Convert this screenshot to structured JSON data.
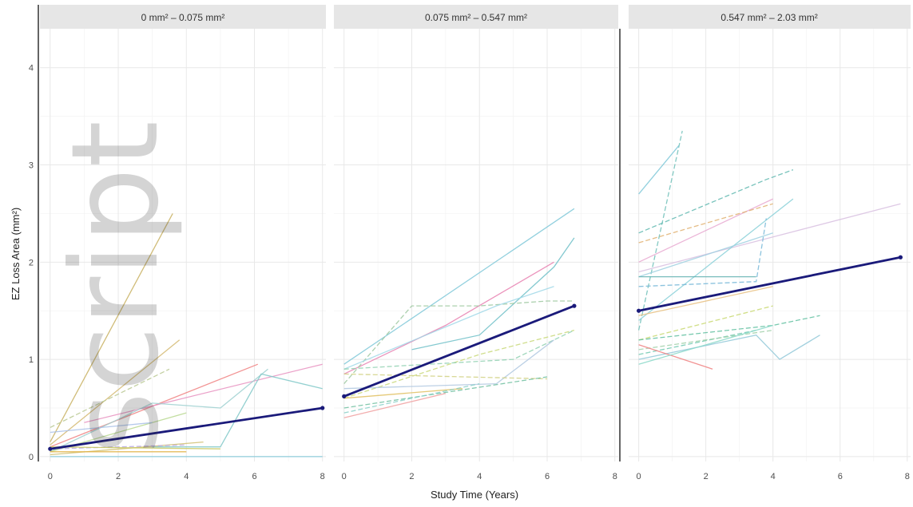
{
  "chart_data": {
    "type": "line",
    "xlabel": "Study Time (Years)",
    "ylabel": "EZ Loss Area (mm²)",
    "ylim": [
      -0.05,
      4.4
    ],
    "yticks": [
      0,
      1,
      2,
      3,
      4
    ],
    "ytick_labels": [
      "0",
      "1",
      "2",
      "3",
      "4"
    ],
    "grid": true,
    "legend": "none",
    "trend_color": "#1a1a7a",
    "panels": [
      {
        "strip": "0 mm² – 0.075 mm²",
        "xlim": [
          -0.3,
          8.1
        ],
        "xticks": [
          0,
          2,
          4,
          6,
          8
        ],
        "xtick_labels": [
          "0",
          "2",
          "4",
          "6",
          "8"
        ],
        "trend": {
          "x": [
            0,
            8
          ],
          "y": [
            0.08,
            0.5
          ]
        },
        "subjects": [
          {
            "color": "#c8b060",
            "dash": false,
            "x": [
              0,
              3.6
            ],
            "y": [
              0.15,
              2.5
            ]
          },
          {
            "color": "#d4b870",
            "dash": false,
            "x": [
              0,
              3.8
            ],
            "y": [
              0.12,
              1.2
            ]
          },
          {
            "color": "#b8c890",
            "dash": true,
            "x": [
              0,
              3.5
            ],
            "y": [
              0.3,
              0.9
            ]
          },
          {
            "color": "#f08080",
            "dash": false,
            "x": [
              0,
              6.1
            ],
            "y": [
              0.1,
              0.95
            ]
          },
          {
            "color": "#e890c0",
            "dash": false,
            "x": [
              1,
              8
            ],
            "y": [
              0.35,
              0.95
            ]
          },
          {
            "color": "#9ed0d0",
            "dash": false,
            "x": [
              0,
              3,
              5,
              6.4
            ],
            "y": [
              0.05,
              0.55,
              0.5,
              0.9
            ]
          },
          {
            "color": "#80c8c8",
            "dash": false,
            "x": [
              3,
              5,
              6.2,
              8
            ],
            "y": [
              0.1,
              0.1,
              0.85,
              0.7
            ]
          },
          {
            "color": "#b8d890",
            "dash": false,
            "x": [
              0,
              4
            ],
            "y": [
              0.05,
              0.45
            ]
          },
          {
            "color": "#d0c070",
            "dash": false,
            "x": [
              0,
              4.5
            ],
            "y": [
              0.02,
              0.15
            ]
          },
          {
            "color": "#b8a8e0",
            "dash": true,
            "x": [
              0,
              4
            ],
            "y": [
              0.08,
              0.12
            ]
          },
          {
            "color": "#c8c860",
            "dash": false,
            "x": [
              0,
              5
            ],
            "y": [
              0.1,
              0.08
            ]
          },
          {
            "color": "#e0b040",
            "dash": false,
            "x": [
              0,
              4
            ],
            "y": [
              0.05,
              0.05
            ]
          },
          {
            "color": "#7fc8d8",
            "dash": false,
            "x": [
              0,
              8
            ],
            "y": [
              0,
              0
            ]
          },
          {
            "color": "#a8c0e8",
            "dash": false,
            "x": [
              0,
              3
            ],
            "y": [
              0.25,
              0.35
            ]
          }
        ]
      },
      {
        "strip": "0.075 mm² – 0.547 mm²",
        "xlim": [
          -0.3,
          8.1
        ],
        "xticks": [
          0,
          2,
          4,
          6,
          8
        ],
        "xtick_labels": [
          "0",
          "2",
          "4",
          "6",
          "8"
        ],
        "trend": {
          "x": [
            0,
            6.8
          ],
          "y": [
            0.62,
            1.55
          ]
        },
        "subjects": [
          {
            "color": "#7fc8d8",
            "dash": false,
            "x": [
              0,
              6.8
            ],
            "y": [
              0.95,
              2.55
            ]
          },
          {
            "color": "#6fc0c8",
            "dash": false,
            "x": [
              2,
              4,
              6.2,
              6.8
            ],
            "y": [
              1.1,
              1.25,
              1.95,
              2.25
            ]
          },
          {
            "color": "#e880b0",
            "dash": false,
            "x": [
              0,
              3,
              6.2
            ],
            "y": [
              0.85,
              1.35,
              2.0
            ]
          },
          {
            "color": "#9ec8a0",
            "dash": true,
            "x": [
              0,
              2,
              4,
              6,
              6.8
            ],
            "y": [
              0.75,
              1.55,
              1.55,
              1.6,
              1.6
            ]
          },
          {
            "color": "#a0d8e8",
            "dash": false,
            "x": [
              0,
              4.5,
              6.2
            ],
            "y": [
              0.9,
              1.55,
              1.75
            ]
          },
          {
            "color": "#c8d878",
            "dash": true,
            "x": [
              0,
              4,
              6.8
            ],
            "y": [
              0.6,
              1.05,
              1.3
            ]
          },
          {
            "color": "#8fd0b0",
            "dash": true,
            "x": [
              0,
              5,
              6.8
            ],
            "y": [
              0.9,
              1.0,
              1.3
            ]
          },
          {
            "color": "#b0c8e0",
            "dash": false,
            "x": [
              0,
              4.5,
              6.2
            ],
            "y": [
              0.7,
              0.75,
              1.2
            ]
          },
          {
            "color": "#d0d080",
            "dash": true,
            "x": [
              0,
              6
            ],
            "y": [
              0.85,
              0.8
            ]
          },
          {
            "color": "#70c0a0",
            "dash": true,
            "x": [
              0,
              6
            ],
            "y": [
              0.5,
              0.82
            ]
          },
          {
            "color": "#e0c060",
            "dash": false,
            "x": [
              0,
              3.5
            ],
            "y": [
              0.6,
              0.7
            ]
          },
          {
            "color": "#88d0c8",
            "dash": true,
            "x": [
              0,
              4
            ],
            "y": [
              0.45,
              0.75
            ]
          },
          {
            "color": "#f0a0a0",
            "dash": false,
            "x": [
              0,
              3
            ],
            "y": [
              0.4,
              0.65
            ]
          }
        ]
      },
      {
        "strip": "0.547 mm² – 2.03 mm²",
        "xlim": [
          -0.3,
          8.1
        ],
        "xticks": [
          0,
          2,
          4,
          6,
          8
        ],
        "xtick_labels": [
          "0",
          "2",
          "4",
          "6",
          "8"
        ],
        "trend": {
          "x": [
            0,
            7.8
          ],
          "y": [
            1.5,
            2.05
          ]
        },
        "subjects": [
          {
            "color": "#6fc0b8",
            "dash": true,
            "x": [
              0,
              1.3
            ],
            "y": [
              1.3,
              3.35
            ]
          },
          {
            "color": "#7fc8d8",
            "dash": false,
            "x": [
              0,
              1.2
            ],
            "y": [
              2.7,
              3.2
            ]
          },
          {
            "color": "#60b8b0",
            "dash": true,
            "x": [
              0,
              3.8,
              4.6
            ],
            "y": [
              2.3,
              2.85,
              2.95
            ]
          },
          {
            "color": "#e8a8d0",
            "dash": false,
            "x": [
              0,
              4
            ],
            "y": [
              2.0,
              2.65
            ]
          },
          {
            "color": "#e0b070",
            "dash": true,
            "x": [
              0,
              4
            ],
            "y": [
              2.2,
              2.6
            ]
          },
          {
            "color": "#d8c0e0",
            "dash": false,
            "x": [
              0,
              7.8
            ],
            "y": [
              1.9,
              2.6
            ]
          },
          {
            "color": "#88d0d8",
            "dash": false,
            "x": [
              0,
              4.6
            ],
            "y": [
              1.4,
              2.65
            ]
          },
          {
            "color": "#9fd0e0",
            "dash": false,
            "x": [
              0,
              4
            ],
            "y": [
              1.85,
              2.3
            ]
          },
          {
            "color": "#60b0b0",
            "dash": false,
            "x": [
              0,
              3.5
            ],
            "y": [
              1.85,
              1.85
            ]
          },
          {
            "color": "#78b8d8",
            "dash": true,
            "x": [
              0,
              3.5,
              3.8
            ],
            "y": [
              1.75,
              1.8,
              2.45
            ]
          },
          {
            "color": "#e8c080",
            "dash": false,
            "x": [
              0,
              4
            ],
            "y": [
              1.45,
              1.75
            ]
          },
          {
            "color": "#c8d870",
            "dash": true,
            "x": [
              0,
              4
            ],
            "y": [
              1.2,
              1.55
            ]
          },
          {
            "color": "#60c0a0",
            "dash": true,
            "x": [
              0,
              4,
              5.4
            ],
            "y": [
              1.2,
              1.35,
              1.45
            ]
          },
          {
            "color": "#90c8d8",
            "dash": false,
            "x": [
              0,
              3.5,
              4.2,
              5.4
            ],
            "y": [
              1.0,
              1.25,
              1.0,
              1.25
            ]
          },
          {
            "color": "#70c8b0",
            "dash": true,
            "x": [
              0,
              3.5
            ],
            "y": [
              1.05,
              1.3
            ]
          },
          {
            "color": "#a0d0a8",
            "dash": true,
            "x": [
              0,
              4
            ],
            "y": [
              1.1,
              1.3
            ]
          },
          {
            "color": "#f08080",
            "dash": false,
            "x": [
              0,
              2.2
            ],
            "y": [
              1.15,
              0.9
            ]
          },
          {
            "color": "#88d8c8",
            "dash": false,
            "x": [
              0,
              4
            ],
            "y": [
              0.95,
              1.35
            ]
          }
        ]
      }
    ]
  },
  "watermark": {
    "text": "script"
  }
}
